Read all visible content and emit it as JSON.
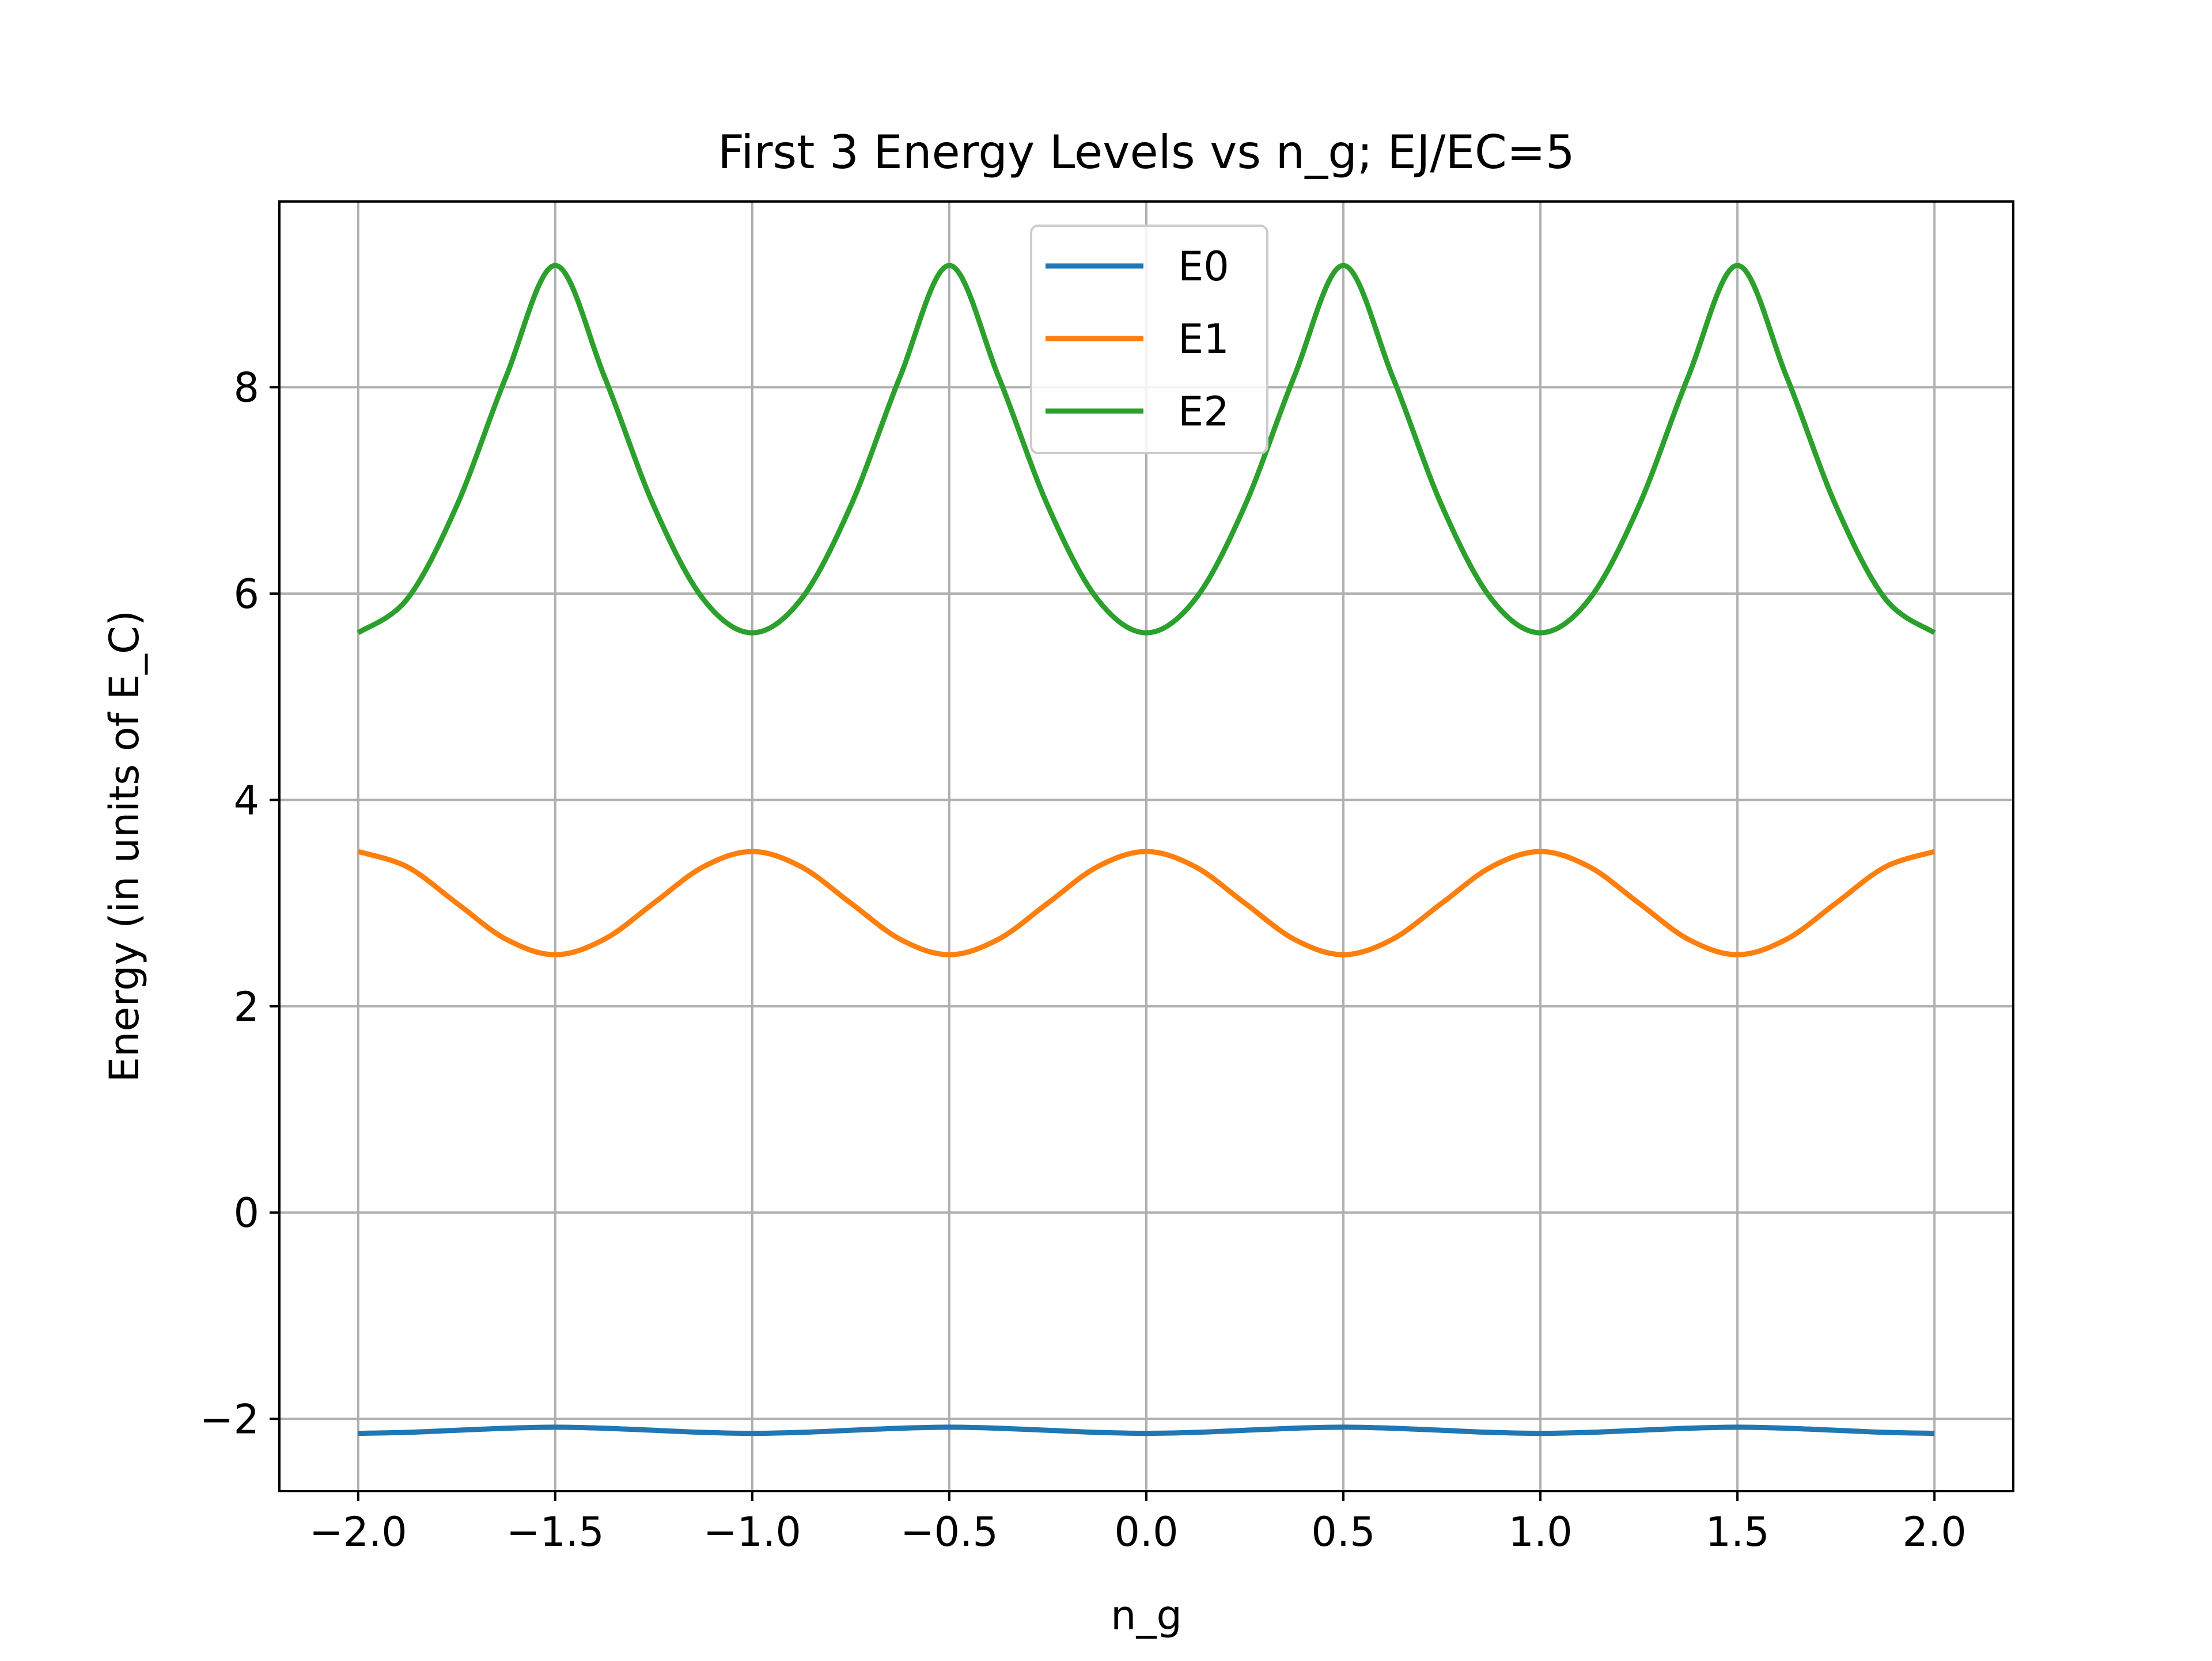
{
  "chart_data": {
    "type": "line",
    "title": "First 3 Energy Levels vs n_g; EJ/EC=5",
    "xlabel": "n_g",
    "ylabel": "Energy (in units of E_C)",
    "xlim": [
      -2.2,
      2.2
    ],
    "ylim": [
      -2.7,
      9.8
    ],
    "xticks": [
      -2.0,
      -1.5,
      -1.0,
      -0.5,
      0.0,
      0.5,
      1.0,
      1.5,
      2.0
    ],
    "xtick_labels": [
      "−2.0",
      "−1.5",
      "−1.0",
      "−0.5",
      "0.0",
      "0.5",
      "1.0",
      "1.5",
      "2.0"
    ],
    "yticks": [
      -2,
      0,
      2,
      4,
      6,
      8
    ],
    "ytick_labels": [
      "−2",
      "0",
      "2",
      "4",
      "6",
      "8"
    ],
    "grid": true,
    "legend_position": "top-center",
    "x": [
      -2.0,
      -1.875,
      -1.75,
      -1.625,
      -1.5,
      -1.375,
      -1.25,
      -1.125,
      -1.0,
      -0.875,
      -0.75,
      -0.625,
      -0.5,
      -0.375,
      -0.25,
      -0.125,
      0.0,
      0.125,
      0.25,
      0.375,
      0.5,
      0.625,
      0.75,
      0.875,
      1.0,
      1.125,
      1.25,
      1.375,
      1.5,
      1.625,
      1.75,
      1.875,
      2.0
    ],
    "series": [
      {
        "name": "E0",
        "color": "#1f77b4",
        "values": [
          -2.14,
          -2.13,
          -2.11,
          -2.09,
          -2.08,
          -2.09,
          -2.11,
          -2.13,
          -2.14,
          -2.13,
          -2.11,
          -2.09,
          -2.08,
          -2.09,
          -2.11,
          -2.13,
          -2.14,
          -2.13,
          -2.11,
          -2.09,
          -2.08,
          -2.09,
          -2.11,
          -2.13,
          -2.14,
          -2.13,
          -2.11,
          -2.09,
          -2.08,
          -2.09,
          -2.11,
          -2.13,
          -2.14
        ]
      },
      {
        "name": "E1",
        "color": "#ff7f0e",
        "values": [
          3.5,
          3.35,
          3.0,
          2.65,
          2.5,
          2.65,
          3.0,
          3.35,
          3.5,
          3.35,
          3.0,
          2.65,
          2.5,
          2.65,
          3.0,
          3.35,
          3.5,
          3.35,
          3.0,
          2.65,
          2.5,
          2.65,
          3.0,
          3.35,
          3.5,
          3.35,
          3.0,
          2.65,
          2.5,
          2.65,
          3.0,
          3.35,
          3.5
        ]
      },
      {
        "name": "E2",
        "color": "#2ca02c",
        "values": [
          5.62,
          5.95,
          6.85,
          8.1,
          9.18,
          8.1,
          6.85,
          5.95,
          5.62,
          5.95,
          6.85,
          8.1,
          9.18,
          8.1,
          6.85,
          5.95,
          5.62,
          5.95,
          6.85,
          8.1,
          9.18,
          8.1,
          6.85,
          5.95,
          5.62,
          5.95,
          6.85,
          8.1,
          9.18,
          8.1,
          6.85,
          5.95,
          5.62
        ]
      }
    ]
  }
}
